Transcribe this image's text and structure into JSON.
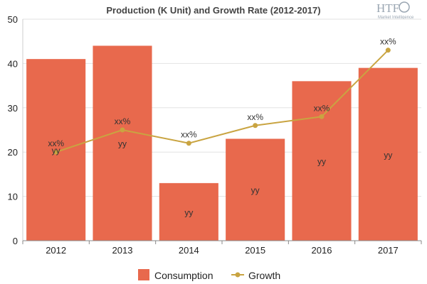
{
  "logo": {
    "main": "HTF",
    "sub": "Market Intelligence"
  },
  "chart_data": {
    "type": "bar",
    "title": "Production (K Unit) and Growth Rate (2012-2017)",
    "categories": [
      "2012",
      "2013",
      "2014",
      "2015",
      "2016",
      "2017"
    ],
    "ylim": [
      0,
      50
    ],
    "yticks": [
      0,
      10,
      20,
      30,
      40,
      50
    ],
    "grid": true,
    "legend_position": "bottom",
    "series": [
      {
        "name": "Consumption",
        "type": "bar",
        "color": "#e8694d",
        "values": [
          41,
          44,
          13,
          23,
          36,
          39
        ],
        "labels": [
          "yy",
          "yy",
          "yy",
          "yy",
          "yy",
          "yy"
        ]
      },
      {
        "name": "Growth",
        "type": "line",
        "color": "#c9a441",
        "values": [
          20,
          25,
          22,
          26,
          28,
          43
        ],
        "labels": [
          "xx%",
          "xx%",
          "xx%",
          "xx%",
          "xx%",
          "xx%"
        ]
      }
    ]
  }
}
